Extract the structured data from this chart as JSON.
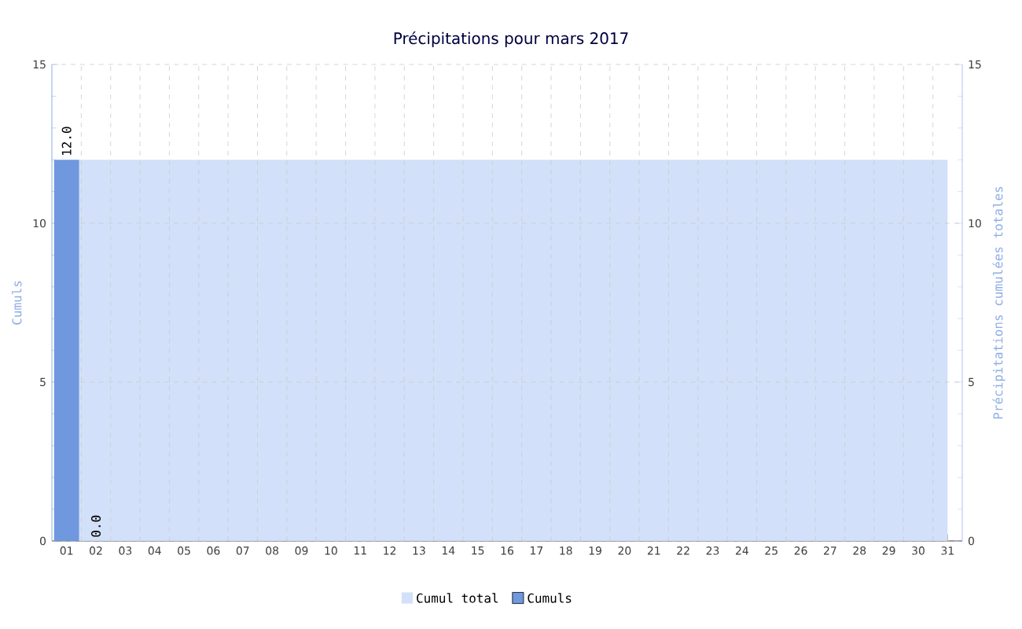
{
  "chart_data": {
    "type": "bar",
    "title": "Précipitations pour mars 2017",
    "ylabel": "Cumuls",
    "y2label": "Précipitations cumulées totales",
    "categories": [
      "01",
      "02",
      "03",
      "04",
      "05",
      "06",
      "07",
      "08",
      "09",
      "10",
      "11",
      "12",
      "13",
      "14",
      "15",
      "16",
      "17",
      "18",
      "19",
      "20",
      "21",
      "22",
      "23",
      "24",
      "25",
      "26",
      "27",
      "28",
      "29",
      "30",
      "31"
    ],
    "series": [
      {
        "name": "Cumul total",
        "type": "area",
        "axis": "y2",
        "color": "#d2e0f9",
        "values": [
          12,
          12,
          12,
          12,
          12,
          12,
          12,
          12,
          12,
          12,
          12,
          12,
          12,
          12,
          12,
          12,
          12,
          12,
          12,
          12,
          12,
          12,
          12,
          12,
          12,
          12,
          12,
          12,
          12,
          12,
          12
        ]
      },
      {
        "name": "Cumuls",
        "color": "#6f98de",
        "values": [
          12,
          0,
          null,
          null,
          null,
          null,
          null,
          null,
          null,
          null,
          null,
          null,
          null,
          null,
          null,
          null,
          null,
          null,
          null,
          null,
          null,
          null,
          null,
          null,
          null,
          null,
          null,
          null,
          null,
          null,
          null
        ],
        "value_labels": [
          "12.0",
          "0.0",
          null,
          null,
          null,
          null,
          null,
          null,
          null,
          null,
          null,
          null,
          null,
          null,
          null,
          null,
          null,
          null,
          null,
          null,
          null,
          null,
          null,
          null,
          null,
          null,
          null,
          null,
          null,
          null,
          null
        ]
      }
    ],
    "ylim": [
      0,
      15
    ],
    "yticks": [
      0,
      5,
      10,
      15
    ],
    "y2lim": [
      0,
      15
    ],
    "y2ticks": [
      0,
      5,
      10,
      15
    ],
    "grid": true,
    "legend": "bottom"
  }
}
